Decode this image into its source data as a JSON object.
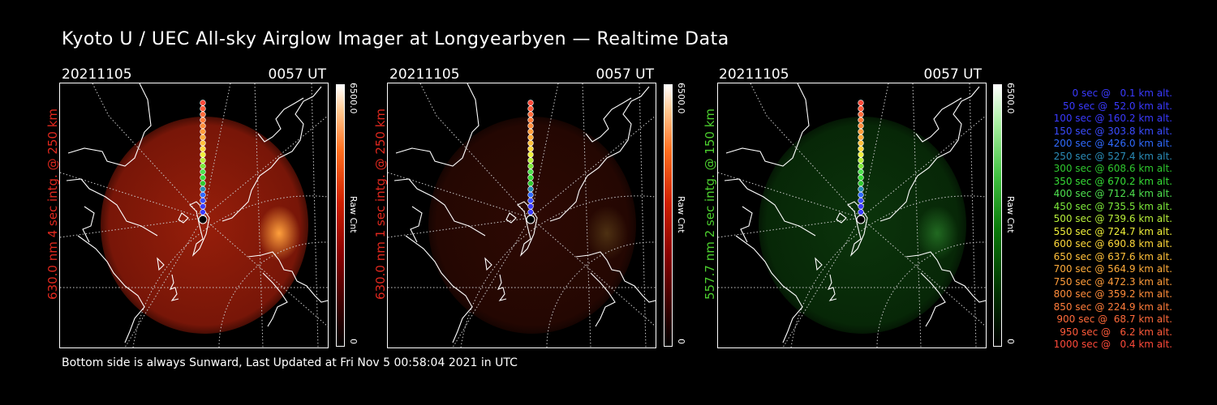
{
  "title": "Kyoto U / UEC All-sky Airglow Imager at Longyearbyen — Realtime Data",
  "footer": "Bottom side is always Sunward, Last Updated at Fri Nov  5 00:58:04 2021 in UTC",
  "panels": [
    {
      "date": "20211105",
      "time": "0057 UT",
      "label": "630.0 nm 4 sec intg. @ 250 km",
      "label_color": "#e0281e",
      "colorbar_max": "6500.0",
      "colorbar_min": "0",
      "colorbar_unit": "Raw Cnt",
      "colormap": "red",
      "intensity": 1.0
    },
    {
      "date": "20211105",
      "time": "0057 UT",
      "label": "630.0 nm 1 sec intg. @ 250 km",
      "label_color": "#e0281e",
      "colorbar_max": "6500.0",
      "colorbar_min": "0",
      "colorbar_unit": "Raw Cnt",
      "colormap": "red",
      "intensity": 0.3
    },
    {
      "date": "20211105",
      "time": "0057 UT",
      "label": "557.7 nm 2 sec intg. @ 150 km",
      "label_color": "#4ccf2e",
      "colorbar_max": "6500.0",
      "colorbar_min": "0",
      "colorbar_unit": "Raw Cnt",
      "colormap": "green",
      "intensity": 0.55
    }
  ],
  "legend": [
    {
      "text": "0 sec @   0.1 km alt.",
      "color": "#3a3aff"
    },
    {
      "text": "50 sec @  52.0 km alt.",
      "color": "#3a3aff"
    },
    {
      "text": "100 sec @ 160.2 km alt.",
      "color": "#3a3aff"
    },
    {
      "text": "150 sec @ 303.8 km alt.",
      "color": "#3a4cff"
    },
    {
      "text": "200 sec @ 426.0 km alt.",
      "color": "#2f6aff"
    },
    {
      "text": "250 sec @ 527.4 km alt.",
      "color": "#2a8cb8"
    },
    {
      "text": "300 sec @ 608.6 km alt.",
      "color": "#2ec82e"
    },
    {
      "text": "350 sec @ 670.2 km alt.",
      "color": "#36dc36"
    },
    {
      "text": "400 sec @ 712.4 km alt.",
      "color": "#4ee04e"
    },
    {
      "text": "450 sec @ 735.5 km alt.",
      "color": "#7ce83a"
    },
    {
      "text": "500 sec @ 739.6 km alt.",
      "color": "#b8f03a"
    },
    {
      "text": "550 sec @ 724.7 km alt.",
      "color": "#f0f03a"
    },
    {
      "text": "600 sec @ 690.8 km alt.",
      "color": "#ffd83a"
    },
    {
      "text": "650 sec @ 637.6 km alt.",
      "color": "#ffc03a"
    },
    {
      "text": "700 sec @ 564.9 km alt.",
      "color": "#ffac3a"
    },
    {
      "text": "750 sec @ 472.3 km alt.",
      "color": "#ff9c3a"
    },
    {
      "text": "800 sec @ 359.2 km alt.",
      "color": "#ff8c3a"
    },
    {
      "text": "850 sec @ 224.9 km alt.",
      "color": "#ff7c3a"
    },
    {
      "text": "900 sec @  68.7 km alt.",
      "color": "#ff6a3a"
    },
    {
      "text": "950 sec @   6.2 km alt.",
      "color": "#ff5a3a"
    },
    {
      "text": "1000 sec @   0.4 km alt.",
      "color": "#ff4a3a"
    }
  ]
}
